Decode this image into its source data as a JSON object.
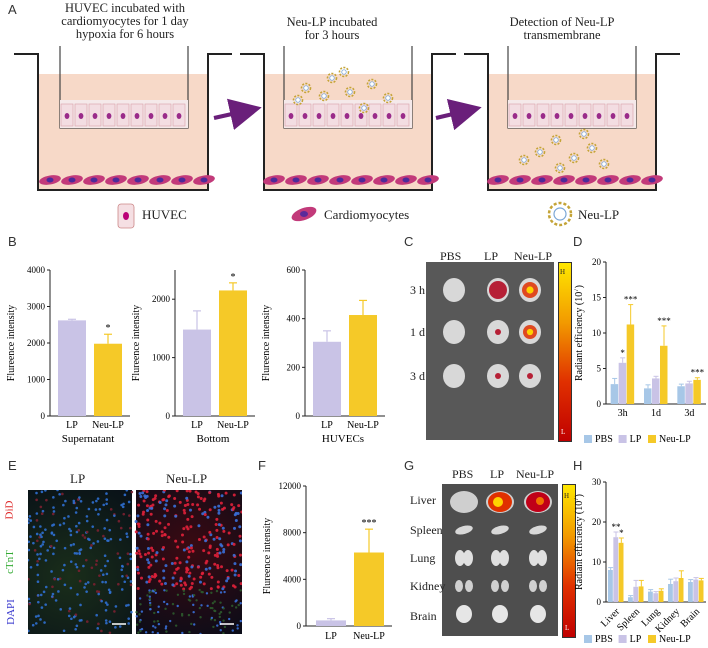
{
  "panel_letters": {
    "a": "A",
    "b": "B",
    "c": "C",
    "d": "D",
    "e": "E",
    "f": "F",
    "g": "G",
    "h": "H"
  },
  "panel_a": {
    "step1": "HUVEC incubated with\ncardiomyocytes for 1 day\nhypoxia for 6 hours",
    "step2": "Neu-LP   incubated\nfor 3 hours",
    "step3": "Detection of Neu-LP\ntransmembrane",
    "legend_huvec": "HUVEC",
    "legend_cardio": "Cardiomyocytes",
    "legend_neulp": "Neu-LP"
  },
  "panel_b": {
    "ylabel": "Flureence intensity",
    "charts": [
      {
        "xlabel": "Supernatant",
        "categories": [
          "LP",
          "Neu-LP"
        ],
        "values": [
          2620,
          1980
        ],
        "errors": [
          30,
          260
        ],
        "ylim": [
          0,
          4000
        ],
        "ticks": [
          0,
          1000,
          2000,
          3000,
          4000
        ],
        "sig": [
          "",
          "*"
        ]
      },
      {
        "xlabel": "Bottom",
        "categories": [
          "LP",
          "Neu-LP"
        ],
        "values": [
          1480,
          2150
        ],
        "errors": [
          320,
          130
        ],
        "ylim": [
          0,
          2500
        ],
        "ticks": [
          0,
          1000,
          2000
        ],
        "sig": [
          "",
          "*"
        ]
      },
      {
        "xlabel": "HUVECs",
        "categories": [
          "LP",
          "Neu-LP"
        ],
        "values": [
          305,
          415
        ],
        "errors": [
          45,
          60
        ],
        "ylim": [
          0,
          600
        ],
        "ticks": [
          0,
          200,
          400,
          600
        ],
        "sig": [
          "",
          ""
        ]
      }
    ]
  },
  "panel_c": {
    "cols": [
      "PBS",
      "LP",
      "Neu-LP"
    ],
    "rows": [
      "3 h",
      "1 d",
      "3 d"
    ],
    "scale_high": "H",
    "scale_low": "L"
  },
  "panel_d": {
    "ylabel": "Radiant efficiency (10",
    "ylabel_sup": "7",
    "ylabel_end": ")",
    "categories": [
      "3h",
      "1d",
      "3d"
    ],
    "ticks": [
      0,
      5,
      10,
      15,
      20
    ],
    "ylim": [
      0,
      20
    ],
    "series": [
      {
        "name": "PBS",
        "color": "#a7c7e7",
        "values": [
          2.8,
          2.2,
          2.5
        ],
        "errors": [
          0.8,
          0.5,
          0.3
        ]
      },
      {
        "name": "LP",
        "color": "#c9c3e6",
        "values": [
          5.8,
          3.6,
          2.9
        ],
        "errors": [
          0.7,
          0.3,
          0.3
        ]
      },
      {
        "name": "Neu-LP",
        "color": "#f5c928",
        "values": [
          11.2,
          8.2,
          3.4
        ],
        "errors": [
          2.8,
          2.8,
          0.3
        ]
      }
    ],
    "sig": [
      [
        "",
        "*",
        "***"
      ],
      [
        "",
        "",
        "***"
      ],
      [
        "",
        "",
        "***"
      ]
    ]
  },
  "panel_e": {
    "cols": [
      "LP",
      "Neu-LP"
    ],
    "side_did": "DiD",
    "side_ctnt": "cTnT",
    "side_dapi": "DAPI"
  },
  "panel_f": {
    "ylabel": "Flureence intensity",
    "categories": [
      "LP",
      "Neu-LP"
    ],
    "values": [
      480,
      6300
    ],
    "errors": [
      150,
      2000
    ],
    "ylim": [
      0,
      12000
    ],
    "ticks": [
      0,
      4000,
      8000,
      12000
    ],
    "sig": [
      "",
      "***"
    ]
  },
  "panel_g": {
    "cols": [
      "PBS",
      "LP",
      "Neu-LP"
    ],
    "rows": [
      "Liver",
      "Spleen",
      "Lung",
      "Kidney",
      "Brain"
    ],
    "scale_high": "H",
    "scale_low": "L"
  },
  "panel_h": {
    "ylabel": "Radiant efficiency (10",
    "ylabel_sup": "7",
    "ylabel_end": ")",
    "categories": [
      "Liver",
      "Spleen",
      "Lung",
      "Kidney",
      "Brain"
    ],
    "ticks": [
      0,
      10,
      20,
      30
    ],
    "ylim": [
      0,
      30
    ],
    "series": [
      {
        "name": "PBS",
        "color": "#a7c7e7",
        "values": [
          8.0,
          1.2,
          2.6,
          4.5,
          5.0
        ],
        "errors": [
          0.6,
          0.4,
          0.5,
          1.2,
          0.6
        ]
      },
      {
        "name": "LP",
        "color": "#c9c3e6",
        "values": [
          16.2,
          3.8,
          2.2,
          5.2,
          5.6
        ],
        "errors": [
          1.3,
          1.6,
          0.4,
          0.8,
          0.5
        ]
      },
      {
        "name": "Neu-LP",
        "color": "#f5c928",
        "values": [
          14.8,
          3.9,
          2.8,
          6.0,
          5.4
        ],
        "errors": [
          1.2,
          1.5,
          0.5,
          1.8,
          0.5
        ]
      }
    ],
    "sig": [
      [
        "**",
        "",
        ""
      ],
      [
        "*",
        "",
        ""
      ]
    ]
  },
  "colors": {
    "lp": "#c9c3e6",
    "neulp": "#f5c928",
    "pbs": "#a7c7e7",
    "arrow": "#6a1f7a",
    "medium": "#f7d9c8"
  }
}
